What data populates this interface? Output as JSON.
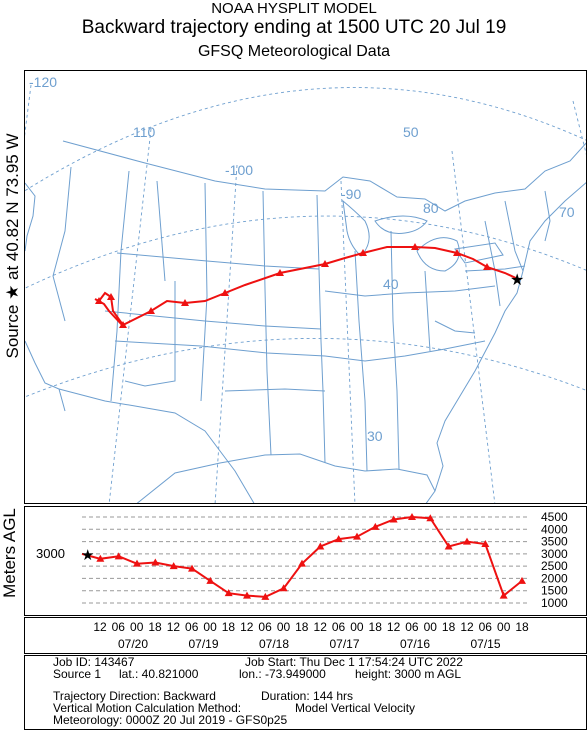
{
  "header": {
    "line1": "NOAA HYSPLIT MODEL",
    "line2": "Backward trajectory ending at 1500 UTC 20 Jul 19",
    "line3": "GFSQ Meteorological Data"
  },
  "side_label": "Source ★ at 40.82 N 73.95 W",
  "y_label": "Meters AGL",
  "start_altitude": "3000",
  "map": {
    "longitude_labels": [
      "-120",
      "110",
      "-100",
      "-90",
      "80",
      "70",
      "50",
      "40",
      "30"
    ],
    "trajectory_color": "#ee1111",
    "grid_color": "#6e9fcf"
  },
  "altitude_axis": {
    "ticks": [
      "4500",
      "4000",
      "3500",
      "3000",
      "2500",
      "2000",
      "1500",
      "1000"
    ]
  },
  "time_axis": {
    "hour_labels": [
      "12",
      "06",
      "00",
      "18",
      "12",
      "06",
      "00",
      "18",
      "12",
      "06",
      "00",
      "18",
      "12",
      "06",
      "00",
      "18",
      "12",
      "06",
      "00",
      "18",
      "12",
      "06",
      "00",
      "18"
    ],
    "date_labels": [
      "07/20",
      "07/19",
      "07/18",
      "07/17",
      "07/16",
      "07/15"
    ]
  },
  "info": {
    "job_id": "Job ID: 143467",
    "job_start": "Job Start: Thu Dec  1 17:54:24 UTC 2022",
    "source": "Source 1",
    "lat": "lat.: 40.821000",
    "lon": "lon.: -73.949000",
    "height": "height: 3000 m AGL",
    "direction": "Trajectory Direction: Backward",
    "duration": "Duration: 144 hrs",
    "vertical_method": "Vertical Motion Calculation Method:",
    "vertical_value": "Model Vertical Velocity",
    "meteorology": "Meteorology: 0000Z 20 Jul 2019 - GFS0p25"
  },
  "chart_data": {
    "type": "line",
    "title": "Backward trajectory ending at 1500 UTC 20 Jul 19",
    "ylabel": "Meters AGL",
    "ylim": [
      1000,
      4500
    ],
    "x": [
      0,
      6,
      12,
      18,
      24,
      30,
      36,
      42,
      48,
      54,
      60,
      66,
      72,
      78,
      84,
      90,
      96,
      102,
      108,
      114,
      120,
      126,
      132,
      138,
      144
    ],
    "series": [
      {
        "values": [
          3000,
          2800,
          2900,
          2600,
          2650,
          2500,
          2400,
          1900,
          1400,
          1300,
          1250,
          1600,
          2600,
          3300,
          3600,
          3700,
          4100,
          4400,
          4500,
          4450,
          3300,
          3500,
          3400,
          1300,
          1900
        ]
      }
    ]
  }
}
